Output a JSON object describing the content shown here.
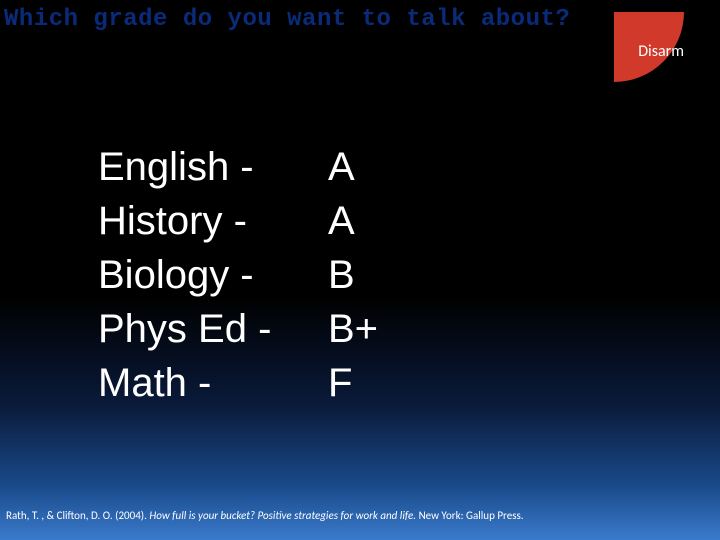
{
  "title": "Which grade do you want to talk about?",
  "disarm": {
    "label": "Disarm",
    "bg_color": "#d13a2a",
    "text_color": "#ffffff"
  },
  "grades": {
    "subjects": [
      "English -",
      "History -",
      "Biology -",
      "Phys Ed -",
      "Math -"
    ],
    "letters": [
      "A",
      "A",
      "B",
      "B+",
      "F"
    ],
    "font_size": 40,
    "text_color": "#ffffff"
  },
  "citation": {
    "prefix": "Rath, T. , & Clifton, D. O. (2004). ",
    "italic": "How full is your bucket? Positive strategies for work and life.",
    "suffix": " New York: Gallup Press.",
    "font_size": 11
  },
  "background": {
    "gradient_stops": [
      "#000000",
      "#000000",
      "#0a1a3a",
      "#1a4a8a",
      "#3a7acc"
    ]
  }
}
